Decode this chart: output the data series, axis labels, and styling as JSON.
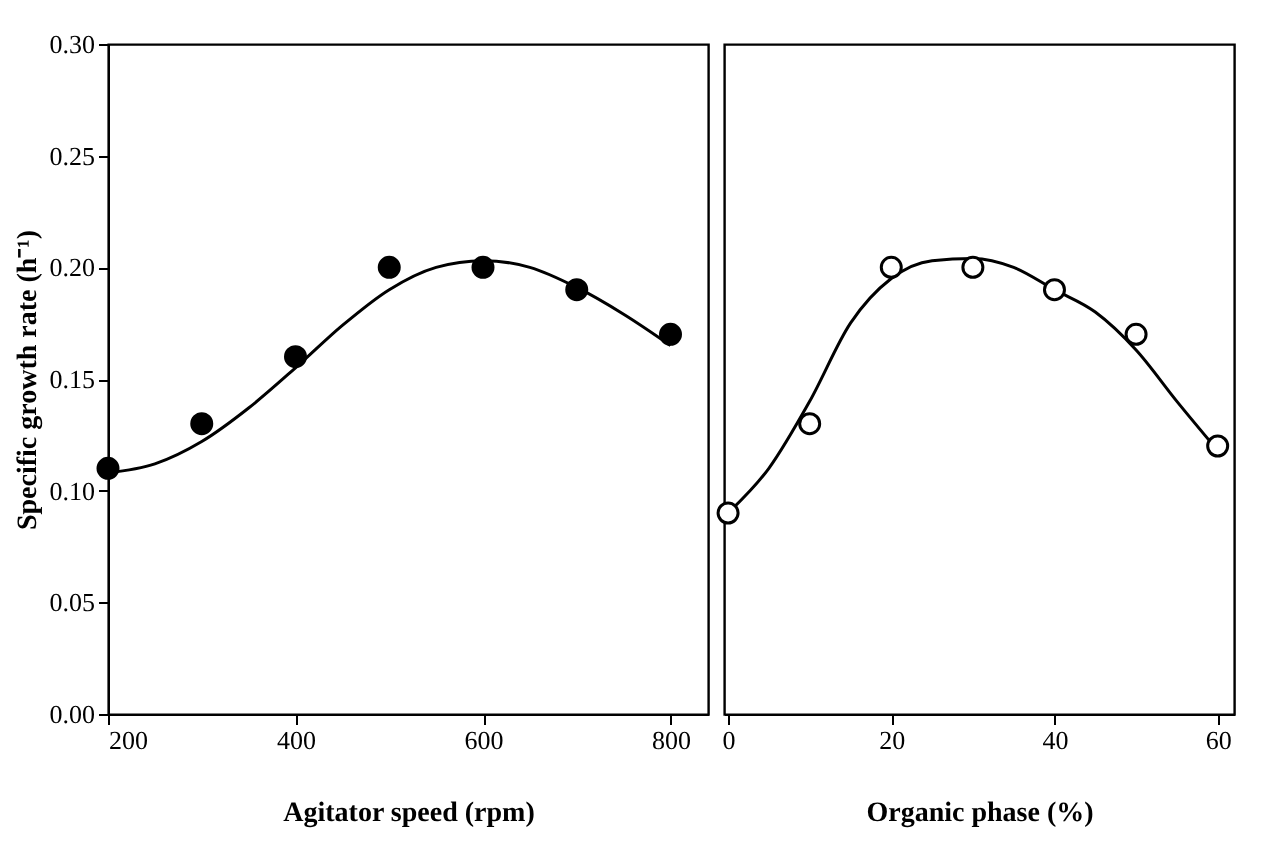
{
  "chart_data": [
    {
      "type": "scatter",
      "xlabel": "Agitator speed (rpm)",
      "ylabel": "Specific growth rate (h⁻¹)",
      "xlim": [
        200,
        840
      ],
      "xticks": [
        200,
        400,
        600,
        800
      ],
      "ylim": [
        0,
        0.3
      ],
      "yticks": [
        {
          "value": 0,
          "label": "0.00"
        },
        {
          "value": 0.05,
          "label": "0.05"
        },
        {
          "value": 0.1,
          "label": "0.10"
        },
        {
          "value": 0.15,
          "label": "0.15"
        },
        {
          "value": 0.2,
          "label": "0.20"
        },
        {
          "value": 0.25,
          "label": "0.25"
        },
        {
          "value": 0.3,
          "label": "0.30"
        }
      ],
      "grid": false,
      "marker": "circle",
      "series": [
        {
          "type": "line",
          "marker": "none",
          "color": "#000000",
          "x": [
            200,
            250,
            300,
            350,
            400,
            450,
            500,
            550,
            600,
            650,
            700,
            750,
            800
          ],
          "values": [
            0.108,
            0.112,
            0.122,
            0.137,
            0.155,
            0.174,
            0.19,
            0.2,
            0.203,
            0.2,
            0.191,
            0.179,
            0.165
          ]
        },
        {
          "color": "#000000",
          "x": [
            200,
            300,
            400,
            500,
            600,
            700,
            800
          ],
          "values": [
            0.11,
            0.13,
            0.16,
            0.2,
            0.2,
            0.19,
            0.17
          ]
        }
      ]
    },
    {
      "type": "scatter",
      "xlabel": "Organic phase (%)",
      "xlim": [
        -0.5,
        62
      ],
      "xticks": [
        0,
        20,
        40,
        60
      ],
      "ylim": [
        0,
        0.3
      ],
      "tick_labels": "x",
      "grid": false,
      "marker": "circle",
      "series": [
        {
          "type": "line",
          "marker": "none",
          "color": "#000000",
          "x": [
            0,
            5,
            10,
            15,
            20,
            25,
            30,
            35,
            40,
            45,
            50,
            55,
            60
          ],
          "values": [
            0.09,
            0.11,
            0.14,
            0.175,
            0.195,
            0.203,
            0.204,
            0.2,
            0.19,
            0.18,
            0.163,
            0.14,
            0.118
          ]
        },
        {
          "color": "#ffffff",
          "x": [
            0,
            10,
            20,
            30,
            40,
            50,
            60
          ],
          "values": [
            0.09,
            0.13,
            0.2,
            0.2,
            0.19,
            0.17,
            0.12
          ]
        }
      ]
    }
  ]
}
